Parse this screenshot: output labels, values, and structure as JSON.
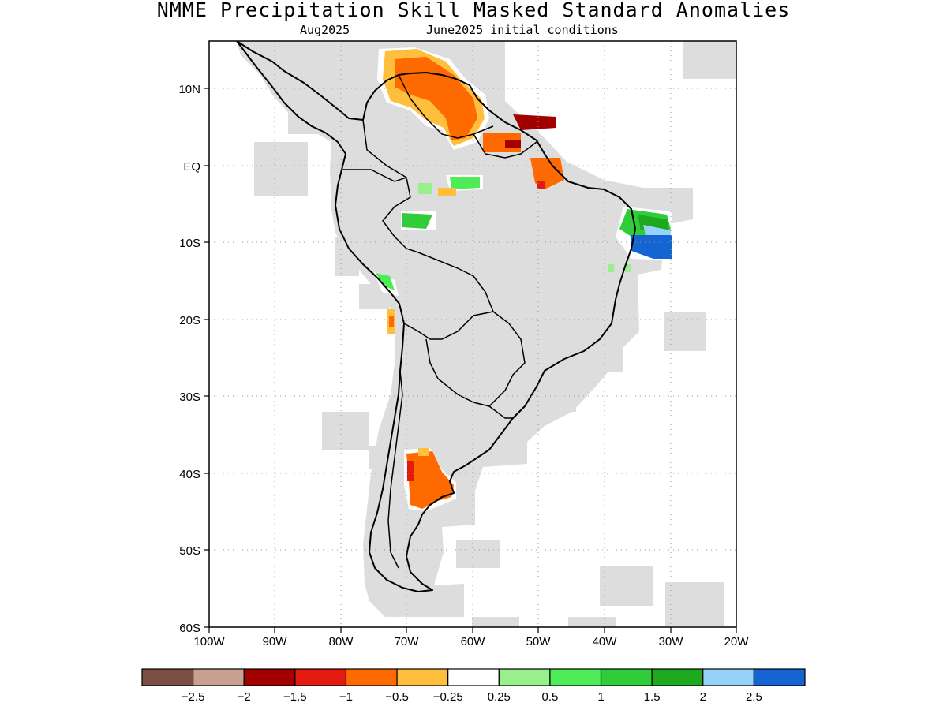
{
  "header": {
    "title": "NMME Precipitation Skill Masked Standard Anomalies",
    "target_month": "Aug2025",
    "init_conditions": "June2025 initial conditions"
  },
  "map": {
    "region": "South America",
    "lat_ticks": [
      "10N",
      "EQ",
      "10S",
      "20S",
      "30S",
      "40S",
      "50S",
      "60S"
    ],
    "lon_ticks": [
      "100W",
      "90W",
      "80W",
      "70W",
      "60W",
      "50W",
      "40W",
      "30W",
      "20W"
    ],
    "grid": "dotted",
    "mask_color": "#dddddd"
  },
  "colorbar": {
    "colors": [
      "#7b4f44",
      "#c9a193",
      "#a30000",
      "#e31a10",
      "#ff6a00",
      "#ffbe3c",
      "#ffffff",
      "#98f08a",
      "#4eec56",
      "#31cc3a",
      "#1da81e",
      "#96d2fa",
      "#1464d2"
    ],
    "labels": [
      "−2.5",
      "−2",
      "−1.5",
      "−1",
      "−0.5",
      "−0.25",
      "0.25",
      "0.5",
      "1",
      "1.5",
      "2",
      "2.5"
    ]
  }
}
